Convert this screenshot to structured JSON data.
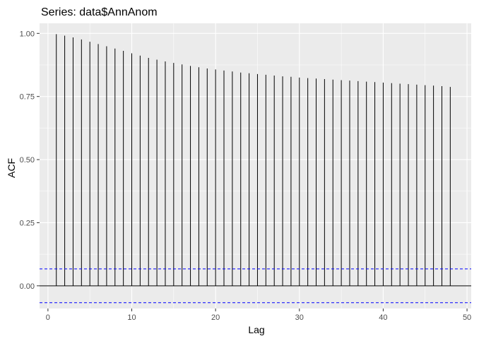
{
  "chart_data": {
    "type": "bar",
    "title": "Series: data$AnnAnom",
    "xlabel": "Lag",
    "ylabel": "ACF",
    "xlim": [
      -1,
      50.5
    ],
    "ylim": [
      -0.09,
      1.04
    ],
    "x_ticks": [
      0,
      10,
      20,
      30,
      40,
      50
    ],
    "y_ticks": [
      0.0,
      0.25,
      0.5,
      0.75,
      1.0
    ],
    "x_tick_labels": [
      "0",
      "10",
      "20",
      "30",
      "40",
      "50"
    ],
    "y_tick_labels": [
      "0.00",
      "0.25",
      "0.50",
      "0.75",
      "1.00"
    ],
    "grid": true,
    "confidence_bounds": [
      0.067,
      -0.067
    ],
    "colors": {
      "panel_background": "#ebebeb",
      "grid_major": "#ffffff",
      "bars": "#000000",
      "confidence_lines": "#0000ff",
      "tick_text": "#4d4d4d"
    },
    "lags": [
      1,
      2,
      3,
      4,
      5,
      6,
      7,
      8,
      9,
      10,
      11,
      12,
      13,
      14,
      15,
      16,
      17,
      18,
      19,
      20,
      21,
      22,
      23,
      24,
      25,
      26,
      27,
      28,
      29,
      30,
      31,
      32,
      33,
      34,
      35,
      36,
      37,
      38,
      39,
      40,
      41,
      42,
      43,
      44,
      45,
      46,
      47,
      48
    ],
    "values": [
      0.997,
      0.991,
      0.984,
      0.976,
      0.967,
      0.958,
      0.949,
      0.94,
      0.931,
      0.921,
      0.912,
      0.903,
      0.896,
      0.889,
      0.883,
      0.877,
      0.871,
      0.866,
      0.861,
      0.857,
      0.853,
      0.849,
      0.845,
      0.842,
      0.839,
      0.836,
      0.833,
      0.83,
      0.828,
      0.825,
      0.823,
      0.821,
      0.819,
      0.817,
      0.815,
      0.813,
      0.811,
      0.809,
      0.807,
      0.805,
      0.803,
      0.801,
      0.799,
      0.797,
      0.795,
      0.793,
      0.791,
      0.788
    ]
  }
}
